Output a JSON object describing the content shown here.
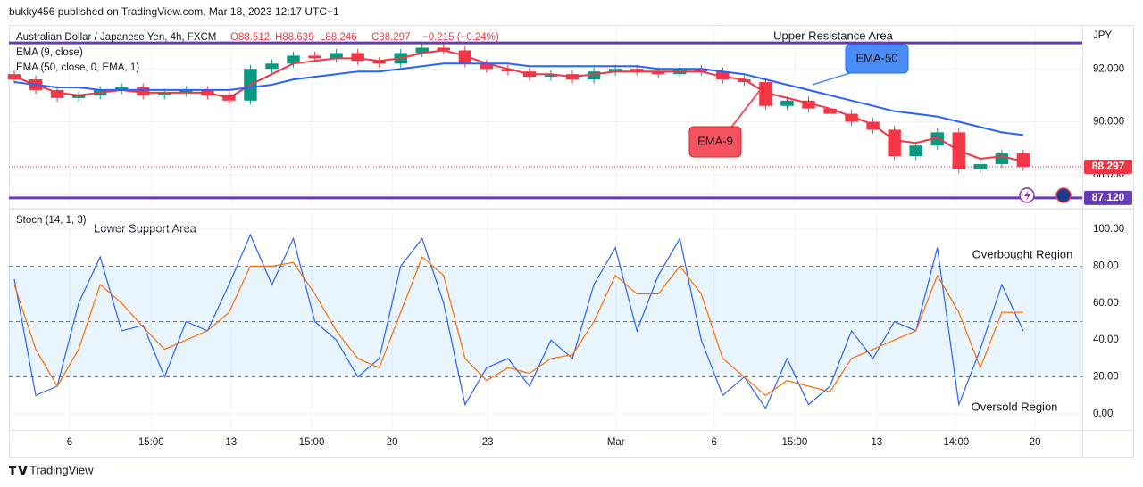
{
  "header": {
    "published": "bukky456 published on TradingView.com, Mar 18, 2023 12:17 UTC+1",
    "brand": "TradingView"
  },
  "chart_data": [
    {
      "type": "candlestick",
      "title": "Australian Dollar / Japanese Yen, 4h, FXCM",
      "legend_values": [
        "O88.512",
        "H88.639",
        "L88.246",
        "C88.297",
        "−0.215 (−0.24%)"
      ],
      "x": [
        0,
        4,
        8,
        12,
        16,
        20,
        24,
        28,
        32,
        36,
        40,
        44,
        48,
        52,
        56,
        60,
        64,
        68,
        72,
        76,
        80,
        84,
        88,
        92,
        96,
        100,
        104,
        108,
        112,
        116,
        120,
        124,
        128,
        132,
        136,
        140,
        144,
        148,
        152,
        156,
        160,
        164,
        168,
        172,
        176,
        180,
        184,
        188
      ],
      "open": [
        91.8,
        91.6,
        91.2,
        90.9,
        91.0,
        91.2,
        91.3,
        91.0,
        91.1,
        91.2,
        91.0,
        90.8,
        92.0,
        92.2,
        92.5,
        92.4,
        92.6,
        92.3,
        92.2,
        92.6,
        92.8,
        92.7,
        92.2,
        92.0,
        91.9,
        91.7,
        91.8,
        91.6,
        91.9,
        92.0,
        91.9,
        91.8,
        92.0,
        91.9,
        91.6,
        91.5,
        90.6,
        90.8,
        90.5,
        90.3,
        90.0,
        89.7,
        88.7,
        89.1,
        89.6,
        88.2,
        88.4,
        88.8
      ],
      "high": [
        91.95,
        91.75,
        91.35,
        91.15,
        91.35,
        91.45,
        91.45,
        91.25,
        91.35,
        91.35,
        91.15,
        92.15,
        92.35,
        92.65,
        92.65,
        92.75,
        92.75,
        92.45,
        92.75,
        92.95,
        92.95,
        92.85,
        92.35,
        92.15,
        92.05,
        91.95,
        91.95,
        92.05,
        92.15,
        92.15,
        92.05,
        92.15,
        92.15,
        92.05,
        91.75,
        91.65,
        90.95,
        90.95,
        90.65,
        90.45,
        90.15,
        89.85,
        89.25,
        89.75,
        89.75,
        88.55,
        88.95,
        88.95
      ],
      "low": [
        91.45,
        91.05,
        90.75,
        90.75,
        90.85,
        91.05,
        90.85,
        90.85,
        90.95,
        90.85,
        90.65,
        90.65,
        91.85,
        92.05,
        92.25,
        92.25,
        92.15,
        92.05,
        92.05,
        92.45,
        92.55,
        92.05,
        91.85,
        91.75,
        91.55,
        91.55,
        91.45,
        91.45,
        91.75,
        91.75,
        91.65,
        91.65,
        91.75,
        91.45,
        91.35,
        90.45,
        90.45,
        90.35,
        90.15,
        89.85,
        89.55,
        88.55,
        88.55,
        88.95,
        88.05,
        88.05,
        88.25,
        88.15
      ],
      "close": [
        91.6,
        91.2,
        90.9,
        91.0,
        91.2,
        91.3,
        91.0,
        91.1,
        91.2,
        91.0,
        90.8,
        92.0,
        92.2,
        92.5,
        92.4,
        92.6,
        92.3,
        92.2,
        92.6,
        92.8,
        92.7,
        92.2,
        92.0,
        91.9,
        91.7,
        91.8,
        91.6,
        91.9,
        92.0,
        91.9,
        91.8,
        92.0,
        91.9,
        91.6,
        91.5,
        90.6,
        90.8,
        90.5,
        90.3,
        90.0,
        89.7,
        88.7,
        89.1,
        89.6,
        88.2,
        88.4,
        88.8,
        88.3
      ],
      "up_color": "#089981",
      "down_color": "#f23645",
      "series": [
        {
          "name": "EMA (9, close)",
          "color": "#f23645",
          "values": [
            91.7,
            91.4,
            91.1,
            91.0,
            91.1,
            91.2,
            91.1,
            91.1,
            91.1,
            91.1,
            90.9,
            91.4,
            91.8,
            92.2,
            92.3,
            92.4,
            92.4,
            92.3,
            92.4,
            92.6,
            92.7,
            92.5,
            92.2,
            92.0,
            91.8,
            91.8,
            91.7,
            91.8,
            91.9,
            91.9,
            91.9,
            91.9,
            91.9,
            91.7,
            91.6,
            91.1,
            90.9,
            90.7,
            90.5,
            90.2,
            89.9,
            89.3,
            89.2,
            89.4,
            88.9,
            88.6,
            88.7,
            88.5
          ]
        },
        {
          "name": "EMA (50, close, 0, EMA, 1)",
          "color": "#2962ff",
          "values": [
            91.5,
            91.4,
            91.3,
            91.3,
            91.2,
            91.2,
            91.2,
            91.2,
            91.2,
            91.2,
            91.2,
            91.3,
            91.4,
            91.6,
            91.7,
            91.8,
            91.9,
            91.9,
            92.0,
            92.1,
            92.2,
            92.2,
            92.2,
            92.2,
            92.1,
            92.1,
            92.1,
            92.1,
            92.1,
            92.1,
            92.0,
            92.0,
            92.0,
            91.9,
            91.8,
            91.6,
            91.4,
            91.2,
            91.0,
            90.8,
            90.6,
            90.4,
            90.3,
            90.2,
            90.0,
            89.8,
            89.6,
            89.5
          ]
        }
      ],
      "xlim": [
        -1,
        199
      ],
      "ylim": [
        86.78,
        93.66
      ],
      "yticks": [
        {
          "value": 88,
          "label": "88.000"
        },
        {
          "value": 90,
          "label": "90.000"
        },
        {
          "value": 92,
          "label": "92.000"
        }
      ],
      "axis_label": "JPY",
      "last_price": 88.297,
      "levels": [
        {
          "name": "Upper Resistance Area",
          "value": 92.98,
          "color": "#673ab7"
        },
        {
          "name": "Lower Support Area",
          "value": 87.12,
          "label": "87.120",
          "color": "#673ab7"
        }
      ],
      "annotations": [
        {
          "text": "EMA-50",
          "color": "#4a8cf7"
        },
        {
          "text": "EMA-9",
          "color": "#f7525f"
        }
      ]
    },
    {
      "type": "line",
      "title": "Stoch (14, 1, 3)",
      "x": [
        0,
        4,
        8,
        12,
        16,
        20,
        24,
        28,
        32,
        36,
        40,
        44,
        48,
        52,
        56,
        60,
        64,
        68,
        72,
        76,
        80,
        84,
        88,
        92,
        96,
        100,
        104,
        108,
        112,
        116,
        120,
        124,
        128,
        132,
        136,
        140,
        144,
        148,
        152,
        156,
        160,
        164,
        168,
        172,
        176,
        180,
        184,
        188
      ],
      "series": [
        {
          "color": "#2962ff",
          "values": [
            73,
            10,
            15,
            60,
            85,
            45,
            48,
            20,
            50,
            45,
            70,
            97,
            70,
            95,
            50,
            40,
            20,
            30,
            80,
            95,
            60,
            5,
            25,
            30,
            15,
            40,
            30,
            70,
            90,
            45,
            75,
            95,
            40,
            10,
            20,
            3,
            30,
            5,
            15,
            45,
            30,
            50,
            45,
            90,
            5,
            35,
            70,
            45
          ]
        },
        {
          "color": "#ff6d00",
          "values": [
            70,
            35,
            15,
            35,
            70,
            60,
            47,
            35,
            40,
            45,
            55,
            80,
            80,
            82,
            65,
            45,
            30,
            25,
            55,
            85,
            75,
            30,
            18,
            25,
            22,
            30,
            32,
            50,
            75,
            65,
            65,
            80,
            65,
            30,
            20,
            10,
            18,
            15,
            12,
            30,
            35,
            40,
            45,
            75,
            55,
            25,
            55,
            55
          ]
        }
      ],
      "xlim": [
        -1,
        199
      ],
      "xticks": [
        {
          "value": 10.3,
          "label": "6"
        },
        {
          "value": 25.5,
          "label": "15:00"
        },
        {
          "value": 40.4,
          "label": "13"
        },
        {
          "value": 55.4,
          "label": "15:00"
        },
        {
          "value": 70.4,
          "label": "20"
        },
        {
          "value": 88.2,
          "label": "23"
        },
        {
          "value": 112.1,
          "label": "Mar"
        },
        {
          "value": 130.4,
          "label": "6"
        },
        {
          "value": 145.4,
          "label": "15:00"
        },
        {
          "value": 160.7,
          "label": "13"
        },
        {
          "value": 175.5,
          "label": "14:00"
        },
        {
          "value": 190.2,
          "label": "20"
        }
      ],
      "ylim": [
        -8.7,
        109.2
      ],
      "yticks": [
        {
          "value": 0,
          "label": "0.00"
        },
        {
          "value": 20,
          "label": "20.00"
        },
        {
          "value": 40,
          "label": "40.00"
        },
        {
          "value": 60,
          "label": "60.00"
        },
        {
          "value": 80,
          "label": "80.00"
        },
        {
          "value": 100,
          "label": "100.00"
        }
      ],
      "bands": [
        80,
        50,
        20
      ],
      "band_fill": "rgba(33,150,243,0.1)",
      "annotations": [
        {
          "text": "Overbought Region"
        },
        {
          "text": "Oversold Region"
        }
      ]
    }
  ]
}
